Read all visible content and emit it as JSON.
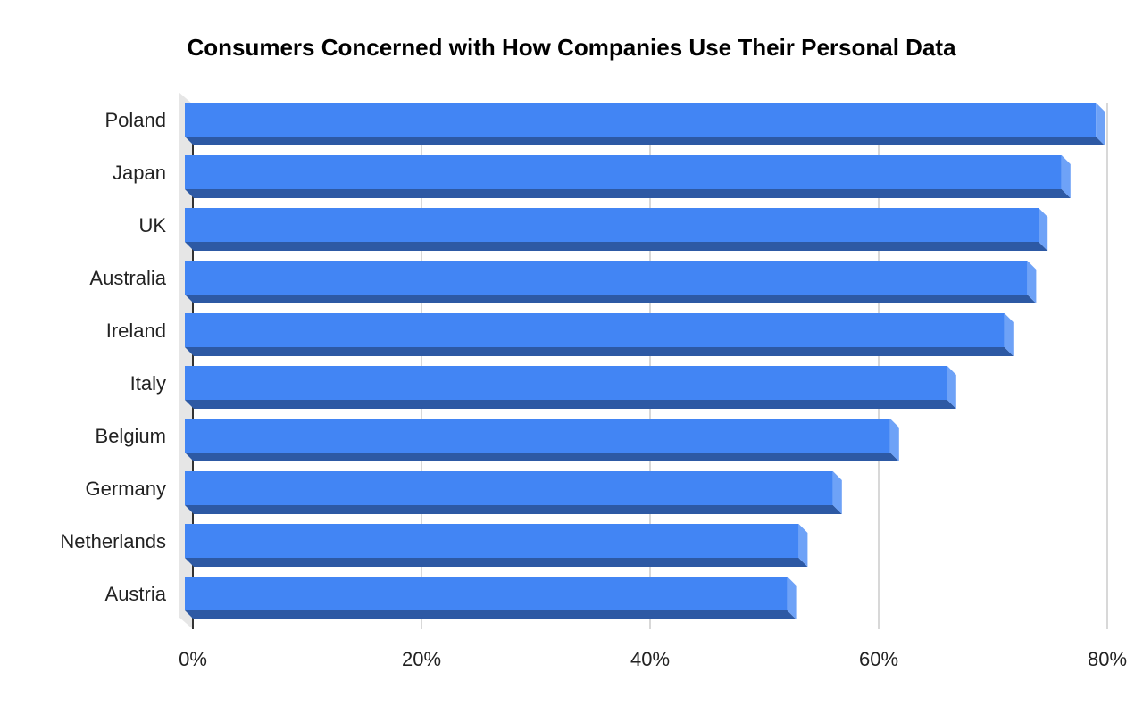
{
  "chart_data": {
    "type": "bar",
    "orientation": "horizontal",
    "style": "3d",
    "title": "Consumers Concerned with How Companies Use Their Personal Data",
    "xlabel": "",
    "ylabel": "",
    "categories": [
      "Poland",
      "Japan",
      "UK",
      "Australia",
      "Ireland",
      "Italy",
      "Belgium",
      "Germany",
      "Netherlands",
      "Austria"
    ],
    "values": [
      79,
      76,
      74,
      73,
      71,
      66,
      61,
      56,
      53,
      52
    ],
    "value_unit": "%",
    "xlim": [
      0,
      80
    ],
    "x_ticks": [
      0,
      20,
      40,
      60,
      80
    ],
    "x_tick_labels": [
      "0%",
      "20%",
      "40%",
      "60%",
      "80%"
    ],
    "grid": true,
    "legend": "none",
    "colors": {
      "bar_front": "#4285f4",
      "bar_bottom": "#2d59a4",
      "bar_end": "#6ea2f7",
      "gridline": "#cccccc",
      "axis": "#333333",
      "wall": "#e6e6e6"
    }
  }
}
